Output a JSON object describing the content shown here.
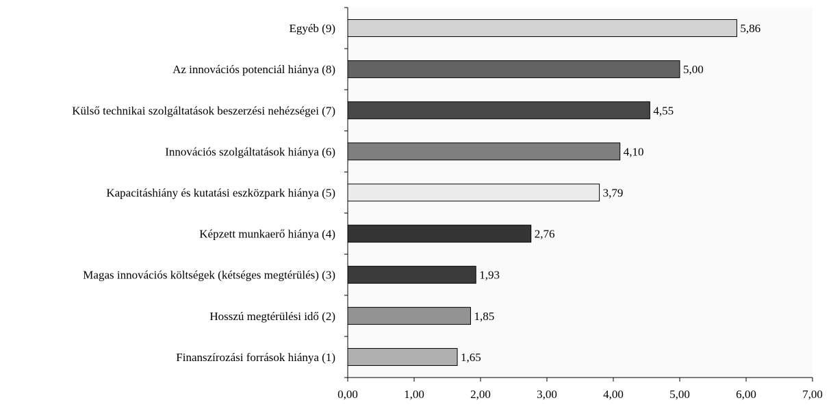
{
  "chart_data": {
    "type": "bar",
    "orientation": "horizontal",
    "categories": [
      "Egyéb (9)",
      "Az innovációs potenciál hiánya (8)",
      "Külső technikai szolgáltatások beszerzési nehézségei (7)",
      "Innovációs szolgáltatások hiánya (6)",
      "Kapacitáshiány és kutatási eszközpark hiánya (5)",
      "Képzett munkaerő hiánya (4)",
      "Magas innovációs költségek (kétséges megtérülés) (3)",
      "Hosszú megtérülési idő (2)",
      "Finanszírozási források hiánya (1)"
    ],
    "values": [
      5.86,
      5.0,
      4.55,
      4.1,
      3.79,
      2.76,
      1.93,
      1.85,
      1.65
    ],
    "value_labels": [
      "5,86",
      "5,00",
      "4,55",
      "4,10",
      "3,79",
      "2,76",
      "1,93",
      "1,85",
      "1,65"
    ],
    "bar_colors": [
      "#d3d3d3",
      "#636363",
      "#474747",
      "#7f7f7f",
      "#ececec",
      "#353535",
      "#3b3b3b",
      "#939393",
      "#b0b0b0"
    ],
    "xlim": [
      0,
      7
    ],
    "xticks": [
      "0,00",
      "1,00",
      "2,00",
      "3,00",
      "4,00",
      "5,00",
      "6,00",
      "7,00"
    ],
    "grid": false,
    "legend": "none",
    "title": "",
    "xlabel": "",
    "ylabel": ""
  }
}
